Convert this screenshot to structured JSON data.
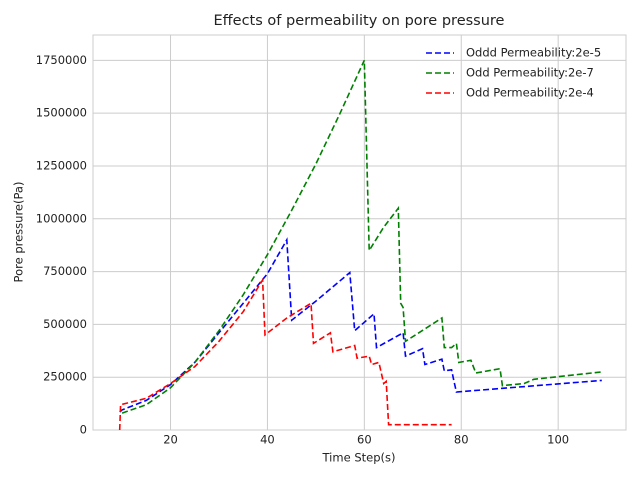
{
  "chart_data": {
    "type": "line",
    "title": "Effects of permeability on pore pressure",
    "x_label": "Time Step(s)",
    "y_label": "Pore pressure(Pa)",
    "xlim": [
      4,
      114
    ],
    "xticks": [
      20,
      40,
      60,
      80,
      100
    ],
    "ylim": [
      0,
      1870000
    ],
    "yticks": [
      0,
      250000,
      500000,
      750000,
      1000000,
      1250000,
      1500000,
      1750000
    ],
    "grid": true,
    "legend": "upper right",
    "line_style": "dashed",
    "series": [
      {
        "name": "Oddd Permeability:2e-5",
        "color": "#0000ff",
        "x": [
          9.5,
          10,
          15,
          20,
          25,
          30,
          35,
          40,
          44,
          45,
          50,
          57,
          58,
          62,
          62.5,
          68,
          68.5,
          72,
          72.5,
          76,
          76.5,
          78,
          78.5,
          79,
          109
        ],
        "values": [
          85000,
          95000,
          140000,
          215000,
          320000,
          460000,
          600000,
          740000,
          900000,
          520000,
          610000,
          745000,
          470000,
          550000,
          390000,
          460000,
          350000,
          385000,
          310000,
          335000,
          280000,
          285000,
          230000,
          180000,
          235000
        ]
      },
      {
        "name": "Odd Permeability:2e-7",
        "color": "#008000",
        "x": [
          10,
          15,
          20,
          25,
          30,
          35,
          40,
          45,
          50,
          55,
          60,
          61,
          64,
          67,
          67.5,
          68,
          68.5,
          76,
          76.5,
          78,
          79,
          79.5,
          82,
          83,
          88,
          88.5,
          93,
          95,
          109
        ],
        "values": [
          80000,
          120000,
          200000,
          320000,
          470000,
          640000,
          830000,
          1040000,
          1260000,
          1500000,
          1750000,
          850000,
          960000,
          1050000,
          600000,
          580000,
          420000,
          530000,
          390000,
          390000,
          410000,
          320000,
          330000,
          270000,
          290000,
          210000,
          220000,
          240000,
          275000
        ]
      },
      {
        "name": "Odd Permeability:2e-4",
        "color": "#ff0000",
        "x": [
          9.5,
          9.7,
          15,
          20,
          25,
          30,
          35,
          39,
          39.5,
          44,
          49,
          49.5,
          53,
          53.5,
          58,
          58.5,
          61,
          61.5,
          63,
          64,
          64.5,
          65,
          78
        ],
        "values": [
          0,
          120000,
          150000,
          220000,
          300000,
          420000,
          560000,
          710000,
          450000,
          530000,
          600000,
          410000,
          460000,
          370000,
          400000,
          340000,
          350000,
          310000,
          320000,
          220000,
          230000,
          25000,
          25000
        ]
      }
    ]
  }
}
